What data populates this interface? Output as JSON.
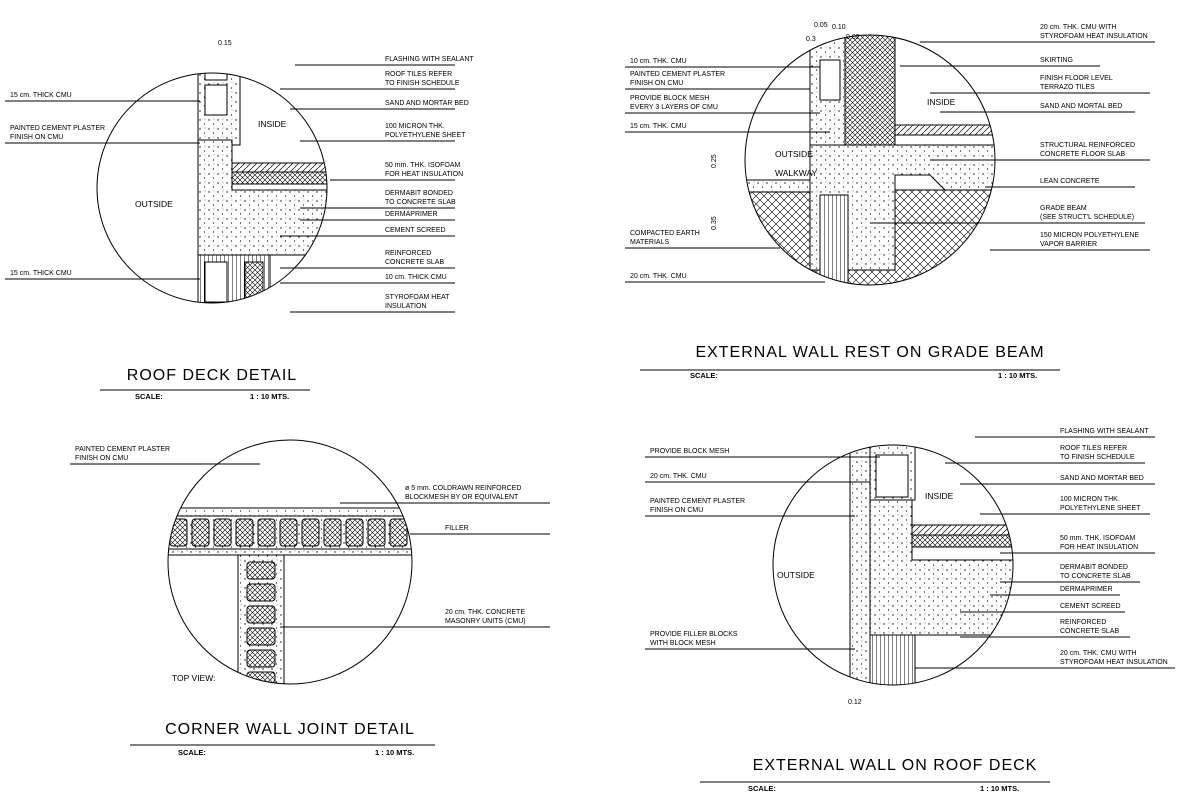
{
  "details": [
    {
      "title": "ROOF DECK DETAIL",
      "scale_label": "SCALE:",
      "scale": "1 : 10 MTS.",
      "dimensions": [
        "0.15"
      ],
      "zones": [
        "OUTSIDE",
        "INSIDE"
      ],
      "notes": [
        [
          "15 cm. THICK CMU"
        ],
        [
          "PAINTED CEMENT PLASTER",
          "FINISH ON CMU"
        ],
        [
          "15 cm. THICK CMU"
        ],
        [
          "FLASHING WITH SEALANT"
        ],
        [
          "ROOF TILES REFER",
          "TO FINISH SCHEDULE"
        ],
        [
          "SAND AND MORTAR BED"
        ],
        [
          "100 MICRON THK.",
          "POLYETHYLENE SHEET"
        ],
        [
          "50 mm. THK. ISOFOAM",
          "FOR HEAT INSULATION"
        ],
        [
          "DERMABIT BONDED",
          "TO CONCRETE SLAB"
        ],
        [
          "DERMAPRIMER"
        ],
        [
          "CEMENT SCREED"
        ],
        [
          "REINFORCED",
          "CONCRETE SLAB"
        ],
        [
          "10 cm. THICK CMU"
        ],
        [
          "STYROFOAM HEAT",
          "INSULATION"
        ]
      ]
    },
    {
      "title": "EXTERNAL WALL REST ON GRADE BEAM",
      "scale_label": "SCALE:",
      "scale": "1 : 10 MTS.",
      "dimensions": [
        "0.05",
        "0.10",
        "0.3",
        "0.02",
        "0.25",
        "0.35"
      ],
      "zones": [
        "OUTSIDE",
        "WALKWAY",
        "INSIDE"
      ],
      "notes": [
        [
          "10 cm. THK. CMU"
        ],
        [
          "PAINTED CEMENT PLASTER",
          "FINISH ON CMU"
        ],
        [
          "PROVIDE BLOCK MESH",
          "EVERY 3 LAYERS OF CMU"
        ],
        [
          "15 cm. THK. CMU"
        ],
        [
          "COMPACTED EARTH",
          "MATERIALS"
        ],
        [
          "20 cm. THK. CMU"
        ],
        [
          "20 cm. THK. CMU WITH",
          "STYROFOAM HEAT INSULATION"
        ],
        [
          "SKIRTING"
        ],
        [
          "FINISH FLOOR LEVEL",
          "TERRAZO TILES"
        ],
        [
          "SAND AND MORTAL BED"
        ],
        [
          "STRUCTURAL REINFORCED",
          "CONCRETE FLOOR SLAB"
        ],
        [
          "LEAN CONCRETE"
        ],
        [
          "GRADE BEAM",
          "(SEE STRUCT'L SCHEDULE)"
        ],
        [
          "150 MICRON POLYETHYLENE",
          "VAPOR BARRIER"
        ]
      ]
    },
    {
      "title": "CORNER WALL JOINT DETAIL",
      "scale_label": "SCALE:",
      "scale": "1 : 10 MTS.",
      "dimensions": [],
      "zones": [
        "TOP VIEW:"
      ],
      "notes": [
        [
          "PAINTED CEMENT PLASTER",
          "FINISH ON CMU"
        ],
        [
          "ø 5 mm. COLDRAWN REINFORCED",
          "BLOCKMESH BY OR EQUIVALENT"
        ],
        [
          "FILLER"
        ],
        [
          "20 cm. THK. CONCRETE",
          "MASONRY UNITS (CMU)"
        ]
      ]
    },
    {
      "title": "EXTERNAL WALL ON ROOF DECK",
      "scale_label": "SCALE:",
      "scale": "1 : 10 MTS.",
      "dimensions": [
        "0.12"
      ],
      "zones": [
        "OUTSIDE",
        "INSIDE"
      ],
      "notes": [
        [
          "PROVIDE BLOCK MESH"
        ],
        [
          "20 cm. THK. CMU"
        ],
        [
          "PAINTED CEMENT PLASTER",
          "FINISH ON CMU"
        ],
        [
          "PROVIDE FILLER BLOCKS",
          "WITH BLOCK MESH"
        ],
        [
          "FLASHING WITH SEALANT"
        ],
        [
          "ROOF TILES REFER",
          "TO FINISH SCHEDULE"
        ],
        [
          "SAND AND MORTAR BED"
        ],
        [
          "100 MICRON THK.",
          "POLYETHYLENE SHEET"
        ],
        [
          "50 mm. THK. ISOFOAM",
          "FOR HEAT INSULATION"
        ],
        [
          "DERMABIT BONDED",
          "TO CONCRETE SLAB"
        ],
        [
          "DERMAPRIMER"
        ],
        [
          "CEMENT SCREED"
        ],
        [
          "REINFORCED",
          "CONCRETE SLAB"
        ],
        [
          "20 cm. THK. CMU WITH",
          "STYROFOAM HEAT INSULATION"
        ]
      ]
    }
  ]
}
